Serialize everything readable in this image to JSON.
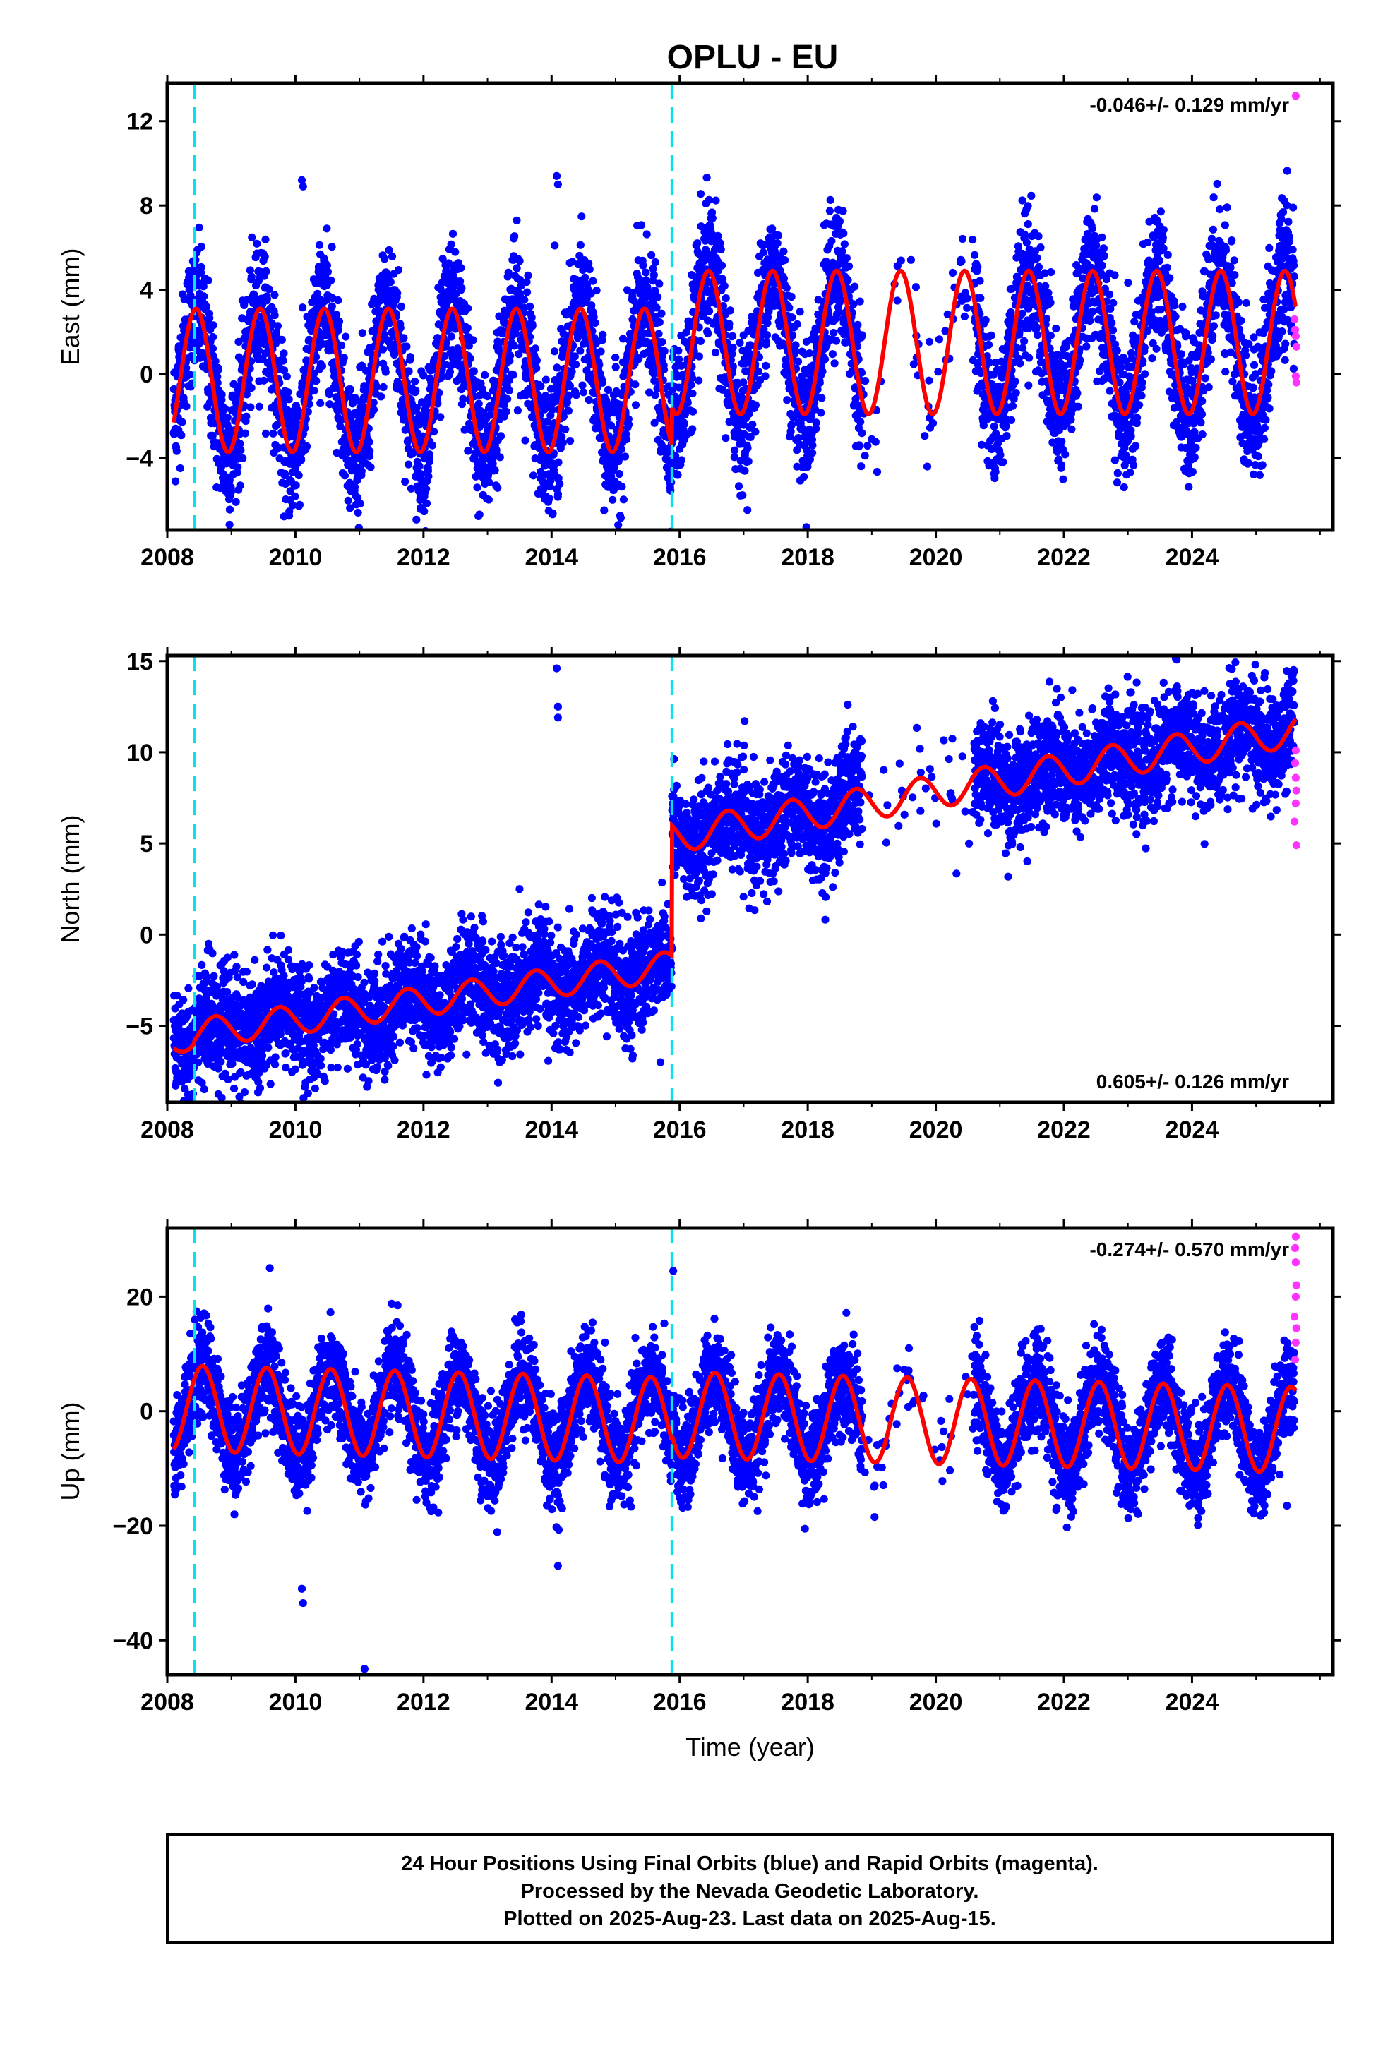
{
  "chart_data": {
    "type": "scatter",
    "title": "OPLU - EU",
    "xlabel": "Time (year)",
    "xlim": [
      2008.0,
      2026.2
    ],
    "xticks": [
      2008,
      2010,
      2012,
      2014,
      2016,
      2018,
      2020,
      2022,
      2024
    ],
    "xtick_labels": [
      "2008",
      "2010",
      "2012",
      "2014",
      "2016",
      "2018",
      "2020",
      "2022",
      "2024"
    ],
    "equipment_changes": [
      2008.42,
      2015.88
    ],
    "legend": "none",
    "grid": false,
    "colors": {
      "final_orbits": "#0000ff",
      "rapid_orbits": "#ff33ff",
      "model_fit": "#ff0000",
      "equipment_change": "#00e5ee",
      "frame": "#000000"
    },
    "panels": [
      {
        "name": "east",
        "ylabel": "East (mm)",
        "ylim": [
          -7.4,
          13.8
        ],
        "yticks": [
          -4,
          0,
          4,
          8,
          12
        ],
        "ytick_labels": [
          "−4",
          "0",
          "4",
          "8",
          "12"
        ],
        "rate_text": "-0.046+/- 0.129 mm/yr",
        "rate_position": "top-right",
        "model": {
          "segments": [
            {
              "start": 2008.1,
              "end": 2008.42,
              "amplitude": 3.4,
              "offset": -0.3,
              "trend": 0.0
            },
            {
              "start": 2008.42,
              "end": 2015.88,
              "amplitude": 3.4,
              "offset": -0.3,
              "trend": 0.0
            },
            {
              "start": 2015.88,
              "end": 2025.62,
              "amplitude": 3.4,
              "offset": 1.5,
              "trend": 0.0
            }
          ],
          "peak_phase": 0.45
        },
        "points_summary": {
          "scatter_sd": 1.6,
          "outliers": [
            {
              "x": 2010.1,
              "y": 9.2
            },
            {
              "x": 2010.12,
              "y": 8.9
            },
            {
              "x": 2014.08,
              "y": 9.4
            },
            {
              "x": 2014.1,
              "y": 9.0
            },
            {
              "x": 2014.05,
              "y": 6.1
            }
          ]
        },
        "rapid_points": [
          {
            "x": 2025.62,
            "y": 13.2
          },
          {
            "x": 2025.6,
            "y": 2.6
          },
          {
            "x": 2025.61,
            "y": 2.1
          },
          {
            "x": 2025.62,
            "y": 1.8
          },
          {
            "x": 2025.63,
            "y": 1.3
          },
          {
            "x": 2025.62,
            "y": -0.1
          },
          {
            "x": 2025.63,
            "y": -0.4
          }
        ]
      },
      {
        "name": "north",
        "ylabel": "North (mm)",
        "ylim": [
          -9.2,
          15.3
        ],
        "yticks": [
          -5,
          0,
          5,
          10,
          15
        ],
        "ytick_labels": [
          "−5",
          "0",
          "5",
          "10",
          "15"
        ],
        "rate_text": "0.605+/- 0.126 mm/yr",
        "rate_position": "bottom-right",
        "model": {
          "segments": [
            {
              "start": 2008.1,
              "end": 2008.42,
              "amplitude": 0.7,
              "offset": -5.8,
              "trend": 0.5
            },
            {
              "start": 2008.42,
              "end": 2015.88,
              "amplitude": 0.8,
              "offset": -5.6,
              "trend": 0.5
            },
            {
              "start": 2015.88,
              "end": 2025.62,
              "amplitude": 0.9,
              "offset": 0.7,
              "trend": 0.6
            }
          ],
          "peak_phase": 0.75
        },
        "points_summary": {
          "scatter_sd": 1.5,
          "outliers": [
            {
              "x": 2014.08,
              "y": 14.6
            },
            {
              "x": 2014.1,
              "y": 12.5
            },
            {
              "x": 2014.1,
              "y": 11.9
            },
            {
              "x": 2013.5,
              "y": 2.5
            },
            {
              "x": 2016.6,
              "y": 6.9
            },
            {
              "x": 2015.7,
              "y": -7.0
            }
          ]
        },
        "rapid_points": [
          {
            "x": 2025.62,
            "y": 10.1
          },
          {
            "x": 2025.61,
            "y": 9.4
          },
          {
            "x": 2025.62,
            "y": 8.6
          },
          {
            "x": 2025.63,
            "y": 7.9
          },
          {
            "x": 2025.62,
            "y": 7.2
          },
          {
            "x": 2025.6,
            "y": 6.2
          },
          {
            "x": 2025.63,
            "y": 4.9
          }
        ]
      },
      {
        "name": "up",
        "ylabel": "Up (mm)",
        "ylim": [
          -46,
          32
        ],
        "yticks": [
          -40,
          -20,
          0,
          20
        ],
        "ytick_labels": [
          "−40",
          "−20",
          "0",
          "20"
        ],
        "rate_text": "-0.274+/- 0.570 mm/yr",
        "rate_position": "top-right",
        "model": {
          "segments": [
            {
              "start": 2008.1,
              "end": 2008.42,
              "amplitude": 7.5,
              "offset": 0.5,
              "trend": -0.27
            },
            {
              "start": 2008.42,
              "end": 2015.88,
              "amplitude": 7.5,
              "offset": 0.5,
              "trend": -0.27
            },
            {
              "start": 2015.88,
              "end": 2025.62,
              "amplitude": 7.5,
              "offset": 1.5,
              "trend": -0.27
            }
          ],
          "peak_phase": 0.55
        },
        "points_summary": {
          "scatter_sd": 4.2,
          "outliers": [
            {
              "x": 2009.6,
              "y": 25.0
            },
            {
              "x": 2010.12,
              "y": -33.5
            },
            {
              "x": 2010.1,
              "y": -31.0
            },
            {
              "x": 2011.08,
              "y": -45.0
            },
            {
              "x": 2014.1,
              "y": -27.0
            },
            {
              "x": 2015.9,
              "y": 24.5
            }
          ]
        },
        "rapid_points": [
          {
            "x": 2025.62,
            "y": 30.5
          },
          {
            "x": 2025.61,
            "y": 28.5
          },
          {
            "x": 2025.62,
            "y": 26.0
          },
          {
            "x": 2025.63,
            "y": 22.0
          },
          {
            "x": 2025.62,
            "y": 20.0
          },
          {
            "x": 2025.6,
            "y": 16.5
          },
          {
            "x": 2025.63,
            "y": 14.5
          },
          {
            "x": 2025.62,
            "y": 12.0
          },
          {
            "x": 2025.61,
            "y": 9.0
          }
        ]
      }
    ],
    "data_gap": [
      2018.85,
      2020.6
    ],
    "data_start": 2008.1,
    "data_end": 2025.6
  },
  "caption": {
    "line1": "24 Hour Positions Using Final Orbits (blue) and Rapid Orbits (magenta).",
    "line2": "Processed by the Nevada Geodetic Laboratory.",
    "line3": "Plotted on 2025-Aug-23. Last data on 2025-Aug-15."
  }
}
